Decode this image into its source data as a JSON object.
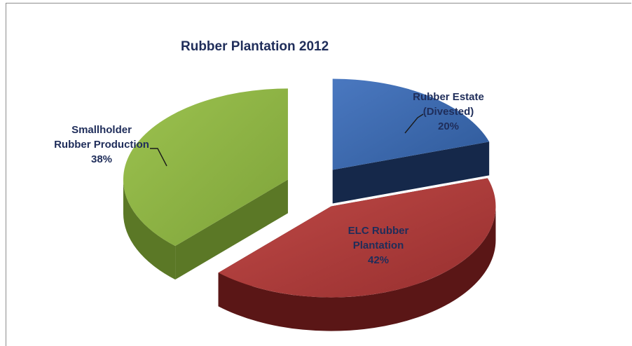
{
  "chart_data": {
    "type": "pie",
    "style": "3d-exploded",
    "title": "Rubber Plantation 2012",
    "slices": [
      {
        "line1": "Rubber Estate",
        "line2": "(Divested)",
        "percent_label": "20%",
        "value": 20,
        "color": "#3a66ac",
        "side_color": "#15284a"
      },
      {
        "line1": "ELC Rubber",
        "line2": "Plantation",
        "percent_label": "42%",
        "value": 42,
        "color": "#ab3b3a",
        "side_color": "#5a1616"
      },
      {
        "line1": "Smallholder",
        "line2": "Rubber Production",
        "percent_label": "38%",
        "value": 38,
        "color": "#8db342",
        "side_color": "#5b7826"
      }
    ]
  }
}
